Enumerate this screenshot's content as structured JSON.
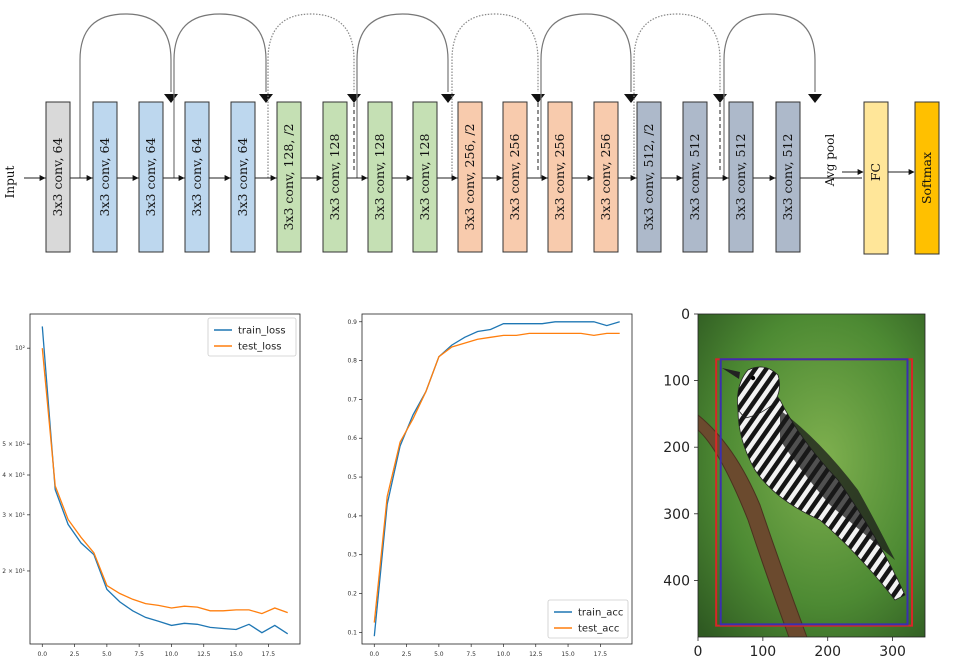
{
  "diagram": {
    "input_label": "Input",
    "layers": [
      {
        "label": "3x3 conv, 64",
        "group": "gray"
      },
      {
        "label": "3x3 conv, 64",
        "group": "blue"
      },
      {
        "label": "3x3 conv, 64",
        "group": "blue"
      },
      {
        "label": "3x3 conv, 64",
        "group": "blue"
      },
      {
        "label": "3x3 conv, 64",
        "group": "blue"
      },
      {
        "label": "3x3 conv, 128, /2",
        "group": "green"
      },
      {
        "label": "3x3 conv, 128",
        "group": "green"
      },
      {
        "label": "3x3 conv, 128",
        "group": "green"
      },
      {
        "label": "3x3 conv, 128",
        "group": "green"
      },
      {
        "label": "3x3 conv, 256, /2",
        "group": "orange"
      },
      {
        "label": "3x3 conv, 256",
        "group": "orange"
      },
      {
        "label": "3x3 conv, 256",
        "group": "orange"
      },
      {
        "label": "3x3 conv, 256",
        "group": "orange"
      },
      {
        "label": "3x3 conv, 512, /2",
        "group": "slate"
      },
      {
        "label": "3x3 conv, 512",
        "group": "slate"
      },
      {
        "label": "3x3 conv, 512",
        "group": "slate"
      },
      {
        "label": "3x3 conv, 512",
        "group": "slate"
      }
    ],
    "pool_label": "Avg pool",
    "fc_label": "FC",
    "softmax_label": "Softmax",
    "colors": {
      "gray": "#d9d9d9",
      "blue": "#bdd7ee",
      "green": "#c5e0b4",
      "orange": "#f8cbad",
      "slate": "#adb9ca",
      "fc": "#ffe699",
      "softmax": "#ffc000"
    }
  },
  "chart_data": [
    {
      "type": "line",
      "yscale": "log",
      "x": [
        0,
        1,
        2,
        3,
        4,
        5,
        6,
        7,
        8,
        9,
        10,
        11,
        12,
        13,
        14,
        15,
        16,
        17,
        18,
        19
      ],
      "series": [
        {
          "name": "train_loss",
          "color": "#1f77b4",
          "values": [
            117,
            36,
            28,
            24.5,
            22.5,
            17.5,
            16,
            15,
            14.3,
            13.9,
            13.5,
            13.7,
            13.6,
            13.3,
            13.2,
            13.1,
            13.6,
            12.8,
            13.5,
            12.7
          ]
        },
        {
          "name": "test_loss",
          "color": "#ff7f0e",
          "values": [
            100,
            37,
            29,
            25.5,
            22.8,
            18,
            17,
            16.3,
            15.8,
            15.6,
            15.3,
            15.5,
            15.4,
            15.0,
            15.0,
            15.1,
            15.1,
            14.7,
            15.3,
            14.8
          ]
        }
      ],
      "yticks": [
        {
          "label": "10²",
          "value": 100
        },
        {
          "label": "5 × 10¹",
          "value": 50
        },
        {
          "label": "4 × 10¹",
          "value": 40
        },
        {
          "label": "3 × 10¹",
          "value": 30
        },
        {
          "label": "2 × 10¹",
          "value": 20
        }
      ],
      "xticks": [
        "0.0",
        "2.5",
        "5.0",
        "7.5",
        "10.0",
        "12.5",
        "15.0",
        "17.5"
      ],
      "legend_position": "top-right"
    },
    {
      "type": "line",
      "x": [
        0,
        1,
        2,
        3,
        4,
        5,
        6,
        7,
        8,
        9,
        10,
        11,
        12,
        13,
        14,
        15,
        16,
        17,
        18,
        19
      ],
      "series": [
        {
          "name": "train_acc",
          "color": "#1f77b4",
          "values": [
            0.09,
            0.43,
            0.58,
            0.66,
            0.72,
            0.81,
            0.84,
            0.86,
            0.875,
            0.88,
            0.895,
            0.895,
            0.895,
            0.895,
            0.9,
            0.9,
            0.9,
            0.9,
            0.89,
            0.9
          ]
        },
        {
          "name": "test_acc",
          "color": "#ff7f0e",
          "values": [
            0.125,
            0.45,
            0.59,
            0.65,
            0.72,
            0.81,
            0.835,
            0.845,
            0.855,
            0.86,
            0.865,
            0.865,
            0.87,
            0.87,
            0.87,
            0.87,
            0.87,
            0.865,
            0.87,
            0.87
          ]
        }
      ],
      "ylim": [
        0.07,
        0.92
      ],
      "yticks": [
        "0.1",
        "0.2",
        "0.3",
        "0.4",
        "0.5",
        "0.6",
        "0.7",
        "0.8",
        "0.9"
      ],
      "xticks": [
        "0.0",
        "2.5",
        "5.0",
        "7.5",
        "10.0",
        "12.5",
        "15.0",
        "17.5"
      ],
      "legend_position": "bottom-right"
    },
    {
      "type": "image",
      "xticks": [
        "0",
        "100",
        "200",
        "300"
      ],
      "yticks": [
        "0",
        "100",
        "200",
        "300",
        "400"
      ],
      "xlim": [
        0,
        350
      ],
      "ylim": [
        0,
        485
      ],
      "boxes": [
        {
          "color": "#d62728",
          "x0": 28,
          "y0": 68,
          "x1": 330,
          "y1": 468
        },
        {
          "color": "#3a2fb0",
          "x0": 35,
          "y0": 68,
          "x1": 323,
          "y1": 466
        }
      ]
    }
  ]
}
